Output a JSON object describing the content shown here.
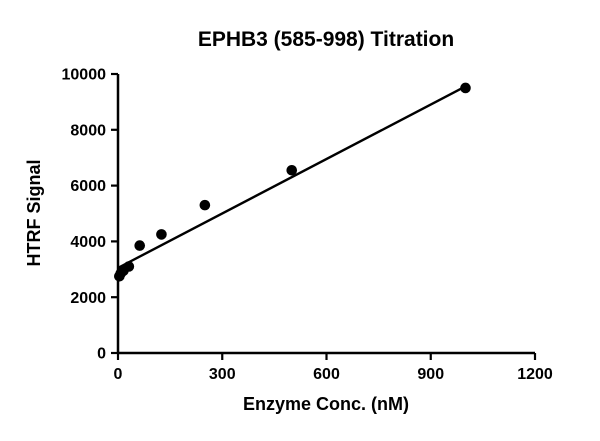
{
  "chart_data": {
    "type": "scatter",
    "title": "EPHB3 (585-998) Titration",
    "xlabel": "Enzyme Conc. (nM)",
    "ylabel": "HTRF Signal",
    "xlim": [
      0,
      1200
    ],
    "ylim": [
      0,
      10000
    ],
    "x_ticks": [
      0,
      300,
      600,
      900,
      1200
    ],
    "y_ticks": [
      0,
      2000,
      4000,
      6000,
      8000,
      10000
    ],
    "grid": "off",
    "legend": "none",
    "marker_color": "#000000",
    "line_color": "#000000",
    "points": [
      {
        "x": 3.9,
        "y": 2750
      },
      {
        "x": 7.8,
        "y": 2850
      },
      {
        "x": 15.6,
        "y": 2950
      },
      {
        "x": 31.25,
        "y": 3100
      },
      {
        "x": 62.5,
        "y": 3850
      },
      {
        "x": 125,
        "y": 4250
      },
      {
        "x": 250,
        "y": 5300
      },
      {
        "x": 500,
        "y": 6550
      },
      {
        "x": 1000,
        "y": 9500
      }
    ],
    "fit_line": {
      "x_start": 0,
      "y_start": 3050,
      "x_end": 1010,
      "y_end": 9620
    }
  }
}
